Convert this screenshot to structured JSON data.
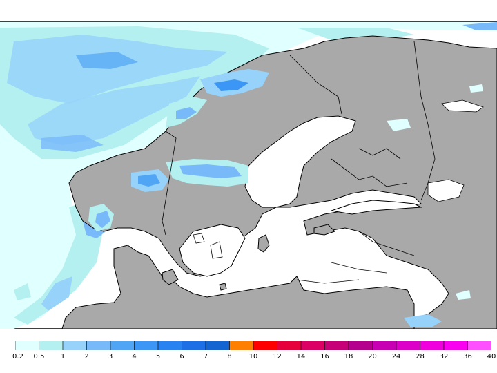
{
  "map": {
    "region": "Scandinavia and Baltic Sea",
    "land_color": "#a9a9a9",
    "water_color": "#ffffff",
    "border_color": "#000000"
  },
  "legend": {
    "colors": [
      "#e0ffff",
      "#b4f0f0",
      "#96d2fa",
      "#78b9fa",
      "#50a5f5",
      "#3c96f5",
      "#2882f0",
      "#1e6ee6",
      "#1464d2",
      "#ff7f00",
      "#ff0000",
      "#e6003c",
      "#dc0064",
      "#c80078",
      "#b4008c",
      "#c800b4",
      "#dc00c8",
      "#f000dc",
      "#fa00f0",
      "#ff50ff"
    ],
    "labels": [
      "0.2",
      "0.5",
      "1",
      "2",
      "3",
      "4",
      "5",
      "6",
      "7",
      "8",
      "10",
      "12",
      "14",
      "16",
      "18",
      "20",
      "24",
      "28",
      "32",
      "36",
      "40"
    ]
  }
}
